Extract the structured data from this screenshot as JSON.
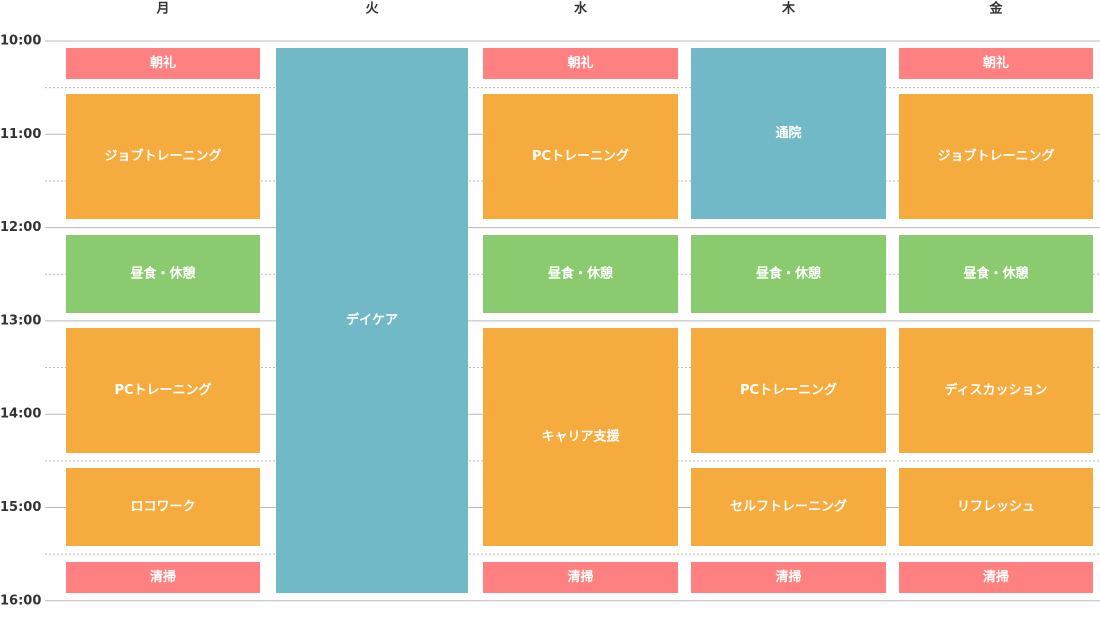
{
  "times": [
    "10:00",
    "11:00",
    "12:00",
    "13:00",
    "14:00",
    "15:00",
    "16:00"
  ],
  "days": [
    {
      "name": "月",
      "events": [
        {
          "label": "朝礼"
        },
        {
          "label": "ジョブトレーニング"
        },
        {
          "label": "昼食・休憩"
        },
        {
          "label": "PCトレーニング"
        },
        {
          "label": "ロコワーク"
        },
        {
          "label": "清掃"
        }
      ]
    },
    {
      "name": "火",
      "events": [
        {
          "label": "デイケア"
        }
      ]
    },
    {
      "name": "水",
      "events": [
        {
          "label": "朝礼"
        },
        {
          "label": "PCトレーニング"
        },
        {
          "label": "昼食・休憩"
        },
        {
          "label": "キャリア支援"
        },
        {
          "label": "清掃"
        }
      ]
    },
    {
      "name": "木",
      "events": [
        {
          "label": "通院"
        },
        {
          "label": "昼食・休憩"
        },
        {
          "label": "PCトレーニング"
        },
        {
          "label": "セルフトレーニング"
        },
        {
          "label": "清掃"
        }
      ]
    },
    {
      "name": "金",
      "events": [
        {
          "label": "朝礼"
        },
        {
          "label": "ジョブトレーニング"
        },
        {
          "label": "昼食・休憩"
        },
        {
          "label": "ディスカッション"
        },
        {
          "label": "リフレッシュ"
        },
        {
          "label": "清掃"
        }
      ]
    }
  ]
}
